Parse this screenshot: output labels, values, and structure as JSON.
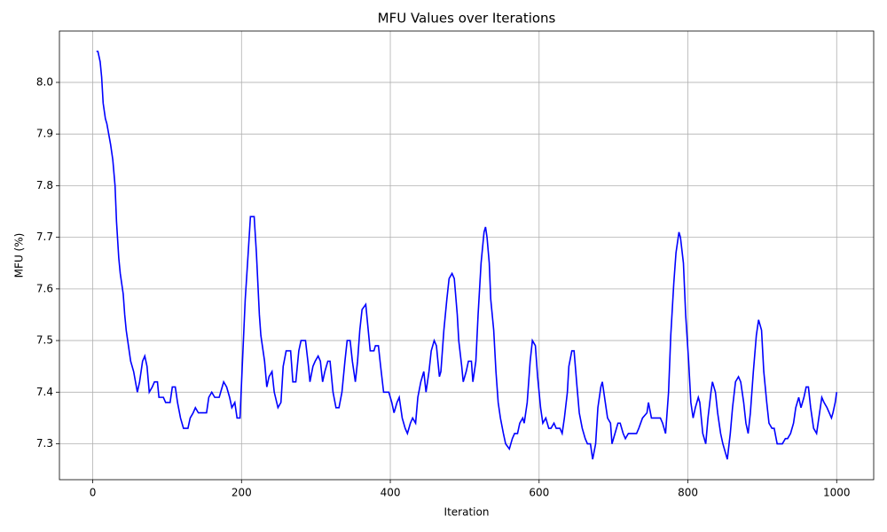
{
  "chart_data": {
    "type": "line",
    "title": "MFU Values over Iterations",
    "x_label": "Iteration",
    "y_label": "MFU (%)",
    "grid": true,
    "xlim": [
      -44.75,
      1049.75
    ],
    "xticks": [
      0,
      200,
      400,
      600,
      800,
      1000
    ],
    "ylim": [
      7.2305,
      8.0995
    ],
    "yticks": [
      7.3,
      7.4,
      7.5,
      7.6,
      7.7,
      7.8,
      7.9,
      {
        "value": 8,
        "label": "8.0"
      }
    ],
    "x": [
      5,
      7,
      10,
      12,
      14,
      17,
      19,
      24,
      27,
      30,
      32,
      35,
      37,
      41,
      43,
      45,
      48,
      51,
      55,
      60,
      63,
      67,
      70,
      73,
      76,
      80,
      83,
      87,
      89,
      95,
      98,
      104,
      107,
      111,
      114,
      118,
      122,
      128,
      131,
      135,
      138,
      142,
      153,
      156,
      160,
      164,
      170,
      174,
      176,
      180,
      184,
      187,
      191,
      194,
      198,
      201,
      205,
      209,
      212,
      217,
      220,
      224,
      226,
      231,
      234,
      237,
      241,
      244,
      249,
      253,
      256,
      260,
      266,
      269,
      273,
      277,
      280,
      286,
      290,
      292,
      296,
      299,
      303,
      306,
      309,
      312,
      316,
      319,
      323,
      327,
      331,
      335,
      339,
      342,
      346,
      349,
      353,
      356,
      359,
      362,
      367,
      371,
      373,
      378,
      380,
      384,
      387,
      391,
      398,
      402,
      405,
      409,
      412,
      416,
      420,
      423,
      427,
      430,
      434,
      437,
      441,
      445,
      448,
      452,
      455,
      459,
      462,
      466,
      468,
      472,
      476,
      479,
      483,
      486,
      490,
      492,
      496,
      498,
      502,
      505,
      509,
      511,
      515,
      518,
      522,
      526,
      528,
      530,
      533,
      535,
      539,
      542,
      545,
      548,
      552,
      555,
      560,
      564,
      567,
      571,
      574,
      578,
      580,
      584,
      588,
      591,
      595,
      598,
      602,
      605,
      609,
      613,
      616,
      620,
      623,
      628,
      631,
      634,
      638,
      640,
      644,
      647,
      651,
      654,
      658,
      662,
      665,
      669,
      672,
      676,
      679,
      683,
      685,
      689,
      692,
      696,
      698,
      702,
      706,
      709,
      713,
      716,
      720,
      731,
      734,
      739,
      745,
      747,
      751,
      763,
      766,
      770,
      774,
      777,
      781,
      784,
      788,
      790,
      794,
      797,
      801,
      804,
      807,
      810,
      814,
      816,
      820,
      824,
      827,
      831,
      833,
      837,
      840,
      844,
      847,
      851,
      853,
      857,
      860,
      864,
      868,
      871,
      875,
      878,
      881,
      884,
      888,
      892,
      895,
      899,
      902,
      906,
      909,
      913,
      916,
      920,
      927,
      931,
      934,
      938,
      942,
      945,
      949,
      952,
      956,
      959,
      962,
      965,
      969,
      973,
      976,
      980,
      983,
      987,
      990,
      993,
      995,
      998,
      1000
    ],
    "series": [
      {
        "name": "MFU",
        "color": "blue",
        "values": [
          8.06,
          8.06,
          8.04,
          8.01,
          7.96,
          7.93,
          7.92,
          7.88,
          7.85,
          7.8,
          7.73,
          7.66,
          7.63,
          7.59,
          7.55,
          7.52,
          7.49,
          7.46,
          7.44,
          7.4,
          7.42,
          7.46,
          7.47,
          7.45,
          7.4,
          7.41,
          7.42,
          7.42,
          7.39,
          7.39,
          7.38,
          7.38,
          7.41,
          7.41,
          7.38,
          7.35,
          7.33,
          7.33,
          7.35,
          7.36,
          7.37,
          7.36,
          7.36,
          7.39,
          7.4,
          7.39,
          7.39,
          7.41,
          7.42,
          7.41,
          7.39,
          7.37,
          7.38,
          7.35,
          7.35,
          7.45,
          7.58,
          7.67,
          7.74,
          7.74,
          7.67,
          7.55,
          7.51,
          7.46,
          7.41,
          7.43,
          7.44,
          7.4,
          7.37,
          7.38,
          7.45,
          7.48,
          7.48,
          7.42,
          7.42,
          7.48,
          7.5,
          7.5,
          7.45,
          7.42,
          7.45,
          7.46,
          7.47,
          7.46,
          7.42,
          7.44,
          7.46,
          7.46,
          7.4,
          7.37,
          7.37,
          7.4,
          7.46,
          7.5,
          7.5,
          7.46,
          7.42,
          7.46,
          7.52,
          7.56,
          7.57,
          7.51,
          7.48,
          7.48,
          7.49,
          7.49,
          7.45,
          7.4,
          7.4,
          7.38,
          7.36,
          7.38,
          7.39,
          7.35,
          7.33,
          7.32,
          7.34,
          7.35,
          7.34,
          7.39,
          7.42,
          7.44,
          7.4,
          7.44,
          7.48,
          7.5,
          7.49,
          7.43,
          7.44,
          7.52,
          7.58,
          7.62,
          7.63,
          7.62,
          7.55,
          7.5,
          7.45,
          7.42,
          7.44,
          7.46,
          7.46,
          7.42,
          7.46,
          7.55,
          7.65,
          7.71,
          7.72,
          7.7,
          7.65,
          7.58,
          7.52,
          7.44,
          7.38,
          7.35,
          7.32,
          7.3,
          7.29,
          7.31,
          7.32,
          7.32,
          7.34,
          7.35,
          7.34,
          7.38,
          7.46,
          7.5,
          7.49,
          7.43,
          7.37,
          7.34,
          7.35,
          7.33,
          7.33,
          7.34,
          7.33,
          7.33,
          7.32,
          7.35,
          7.4,
          7.45,
          7.48,
          7.48,
          7.41,
          7.36,
          7.33,
          7.31,
          7.3,
          7.3,
          7.27,
          7.3,
          7.37,
          7.41,
          7.42,
          7.38,
          7.35,
          7.34,
          7.3,
          7.32,
          7.34,
          7.34,
          7.32,
          7.31,
          7.32,
          7.32,
          7.33,
          7.35,
          7.36,
          7.38,
          7.35,
          7.35,
          7.34,
          7.32,
          7.4,
          7.51,
          7.61,
          7.67,
          7.71,
          7.7,
          7.65,
          7.55,
          7.46,
          7.38,
          7.35,
          7.37,
          7.39,
          7.38,
          7.32,
          7.3,
          7.35,
          7.4,
          7.42,
          7.4,
          7.36,
          7.32,
          7.3,
          7.28,
          7.27,
          7.32,
          7.37,
          7.42,
          7.43,
          7.42,
          7.38,
          7.34,
          7.32,
          7.36,
          7.44,
          7.51,
          7.54,
          7.52,
          7.44,
          7.38,
          7.34,
          7.33,
          7.33,
          7.3,
          7.3,
          7.31,
          7.31,
          7.32,
          7.34,
          7.37,
          7.39,
          7.37,
          7.39,
          7.41,
          7.41,
          7.37,
          7.33,
          7.32,
          7.35,
          7.39,
          7.38,
          7.37,
          7.36,
          7.35,
          7.36,
          7.38,
          7.4
        ]
      }
    ]
  }
}
